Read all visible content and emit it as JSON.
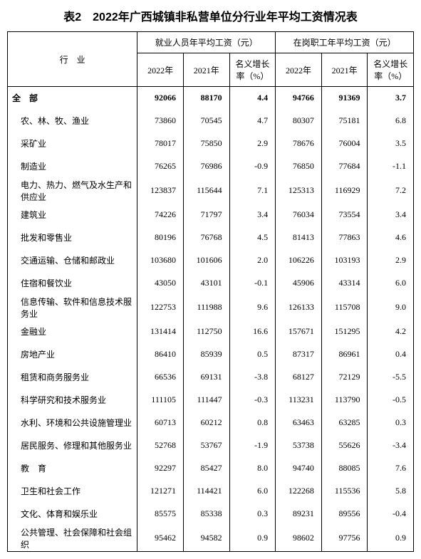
{
  "title": "表2　2022年广西城镇非私营单位分行业年平均工资情况表",
  "header": {
    "industry": "行　业",
    "group1": "就业人员年平均工资（元）",
    "group2": "在岗职工年平均工资（元）",
    "col2022": "2022年",
    "col2021": "2021年",
    "growth": "名义增长率（%）"
  },
  "rows": [
    {
      "name": "全　部",
      "a": 92066,
      "b": 88170,
      "c": "4.4",
      "d": 94766,
      "e": 91369,
      "f": "3.7",
      "total": true
    },
    {
      "name": "农、林、牧、渔业",
      "a": 73860,
      "b": 70545,
      "c": "4.7",
      "d": 80307,
      "e": 75181,
      "f": "6.8"
    },
    {
      "name": "采矿业",
      "a": 78017,
      "b": 75850,
      "c": "2.9",
      "d": 78676,
      "e": 76004,
      "f": "3.5"
    },
    {
      "name": "制造业",
      "a": 76265,
      "b": 76986,
      "c": "-0.9",
      "d": 76850,
      "e": 77684,
      "f": "-1.1"
    },
    {
      "name": "电力、热力、燃气及水生产和供应业",
      "a": 123837,
      "b": 115644,
      "c": "7.1",
      "d": 125313,
      "e": 116929,
      "f": "7.2"
    },
    {
      "name": "建筑业",
      "a": 74226,
      "b": 71797,
      "c": "3.4",
      "d": 76034,
      "e": 73554,
      "f": "3.4"
    },
    {
      "name": "批发和零售业",
      "a": 80196,
      "b": 76768,
      "c": "4.5",
      "d": 81413,
      "e": 77863,
      "f": "4.6"
    },
    {
      "name": "交通运输、仓储和邮政业",
      "a": 103680,
      "b": 101606,
      "c": "2.0",
      "d": 106226,
      "e": 103193,
      "f": "2.9"
    },
    {
      "name": "住宿和餐饮业",
      "a": 43050,
      "b": 43101,
      "c": "-0.1",
      "d": 45906,
      "e": 43314,
      "f": "6.0"
    },
    {
      "name": "信息传输、软件和信息技术服务业",
      "a": 122753,
      "b": 111988,
      "c": "9.6",
      "d": 126133,
      "e": 115708,
      "f": "9.0"
    },
    {
      "name": "金融业",
      "a": 131414,
      "b": 112750,
      "c": "16.6",
      "d": 157671,
      "e": 151295,
      "f": "4.2"
    },
    {
      "name": "房地产业",
      "a": 86410,
      "b": 85939,
      "c": "0.5",
      "d": 87317,
      "e": 86961,
      "f": "0.4"
    },
    {
      "name": "租赁和商务服务业",
      "a": 66536,
      "b": 69131,
      "c": "-3.8",
      "d": 68127,
      "e": 72129,
      "f": "-5.5"
    },
    {
      "name": "科学研究和技术服务业",
      "a": 111105,
      "b": 111447,
      "c": "-0.3",
      "d": 113231,
      "e": 113790,
      "f": "-0.5"
    },
    {
      "name": "水利、环境和公共设施管理业",
      "a": 60713,
      "b": 60212,
      "c": "0.8",
      "d": 63463,
      "e": 63285,
      "f": "0.3"
    },
    {
      "name": "居民服务、修理和其他服务业",
      "a": 52768,
      "b": 53767,
      "c": "-1.9",
      "d": 53738,
      "e": 55626,
      "f": "-3.4"
    },
    {
      "name": "教　育",
      "a": 92297,
      "b": 85427,
      "c": "8.0",
      "d": 94740,
      "e": 88085,
      "f": "7.6"
    },
    {
      "name": "卫生和社会工作",
      "a": 121271,
      "b": 114421,
      "c": "6.0",
      "d": 122268,
      "e": 115536,
      "f": "5.8"
    },
    {
      "name": "文化、体育和娱乐业",
      "a": 85575,
      "b": 85338,
      "c": "0.3",
      "d": 89231,
      "e": 89556,
      "f": "-0.4"
    },
    {
      "name": "公共管理、社会保障和社会组织",
      "a": 95462,
      "b": 94582,
      "c": "0.9",
      "d": 98602,
      "e": 97756,
      "f": "0.9"
    }
  ]
}
